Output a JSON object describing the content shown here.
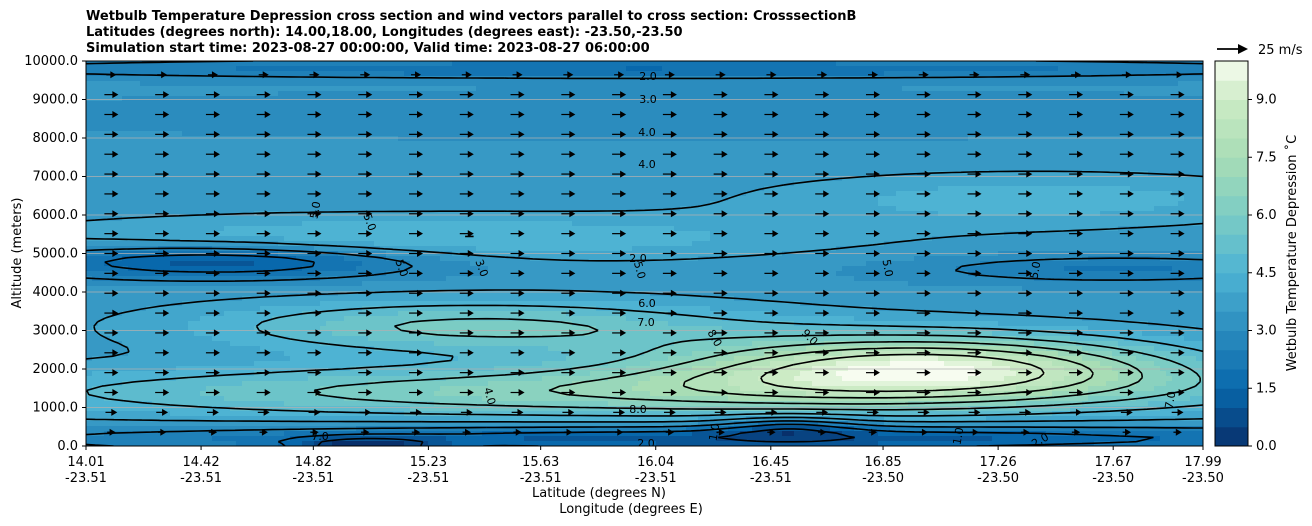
{
  "chart_data": {
    "type": "contour",
    "title": [
      "Wetbulb Temperature Depression cross section and wind vectors parallel to cross section: CrosssectionB",
      "Latitudes (degrees north): 14.00,18.00, Longitudes (degrees east): -23.50,-23.50",
      "Simulation start time: 2023-08-27 00:00:00, Valid time: 2023-08-27 06:00:00"
    ],
    "ylabel": "Altitude (meters)",
    "xlabel_1": "Latitude (degrees N)",
    "xlabel_2": "Longitude (degrees E)",
    "ylim": [
      0,
      10000
    ],
    "xlim": [
      14.01,
      17.99
    ],
    "y_ticks": [
      "0.0",
      "1000.0",
      "2000.0",
      "3000.0",
      "4000.0",
      "5000.0",
      "6000.0",
      "7000.0",
      "8000.0",
      "9000.0",
      "10000.0"
    ],
    "x_ticks": [
      {
        "lat": "14.01",
        "lon": "-23.51"
      },
      {
        "lat": "14.42",
        "lon": "-23.51"
      },
      {
        "lat": "14.82",
        "lon": "-23.51"
      },
      {
        "lat": "15.23",
        "lon": "-23.51"
      },
      {
        "lat": "15.63",
        "lon": "-23.51"
      },
      {
        "lat": "16.04",
        "lon": "-23.51"
      },
      {
        "lat": "16.45",
        "lon": "-23.51"
      },
      {
        "lat": "16.85",
        "lon": "-23.50"
      },
      {
        "lat": "17.26",
        "lon": "-23.50"
      },
      {
        "lat": "17.67",
        "lon": "-23.50"
      },
      {
        "lat": "17.99",
        "lon": "-23.50"
      }
    ],
    "grid": "horizontal",
    "colorbar": {
      "label": "Wetbulb Temperature Depression ˚C",
      "range": [
        0,
        10
      ],
      "ticks": [
        "0.0",
        "1.5",
        "3.0",
        "4.5",
        "6.0",
        "7.5",
        "9.0"
      ],
      "colormap": "GnBu_r"
    },
    "quiver_key": {
      "label": "25 m/s"
    },
    "contour_labels": [
      "2.0",
      "3.0",
      "4.0",
      "4.0",
      "5.0",
      "5.0",
      "5.0",
      "3.0",
      "2.0",
      "5.0",
      "5.0",
      "6.0",
      "7.0",
      "8.0",
      "9.0",
      "5.0",
      "4.0",
      "8.0",
      "7.0",
      "1.0",
      "2.0",
      "7.0",
      "1.0",
      "2.0"
    ]
  }
}
